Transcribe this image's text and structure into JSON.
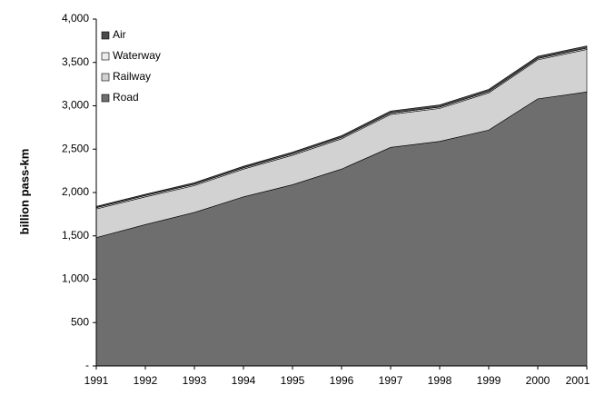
{
  "chart_data": {
    "type": "stacked_area",
    "y_label": "billion pass-km",
    "categories": [
      "1991",
      "1992",
      "1993",
      "1994",
      "1995",
      "1996",
      "1997",
      "1998",
      "1999",
      "2000",
      "2001"
    ],
    "series": [
      {
        "name": "Road",
        "color": "#6e6e6e",
        "values": [
          1480,
          1630,
          1770,
          1950,
          2090,
          2270,
          2520,
          2590,
          2720,
          3080,
          3160
        ]
      },
      {
        "name": "Railway",
        "color": "#d2d2d2",
        "values": [
          330,
          320,
          310,
          320,
          340,
          350,
          380,
          380,
          430,
          450,
          490
        ]
      },
      {
        "name": "Waterway",
        "color": "#ececec",
        "values": [
          15,
          15,
          15,
          15,
          15,
          15,
          15,
          15,
          15,
          15,
          15
        ]
      },
      {
        "name": "Air",
        "color": "#4a4a4a",
        "values": [
          15,
          15,
          18,
          18,
          20,
          20,
          25,
          25,
          25,
          25,
          25
        ]
      }
    ],
    "ylim": [
      0,
      4000
    ],
    "yticks": [
      {
        "value": 0,
        "label": "-"
      },
      500,
      {
        "value": 1000,
        "label": "1,000"
      },
      {
        "value": 1500,
        "label": "1,500"
      },
      {
        "value": 2000,
        "label": "2,000"
      },
      {
        "value": 2500,
        "label": "2,500"
      },
      {
        "value": 3000,
        "label": "3,000"
      },
      {
        "value": 3500,
        "label": "3,500"
      },
      {
        "value": 4000,
        "label": "4,000"
      }
    ],
    "legend": "upper left"
  }
}
